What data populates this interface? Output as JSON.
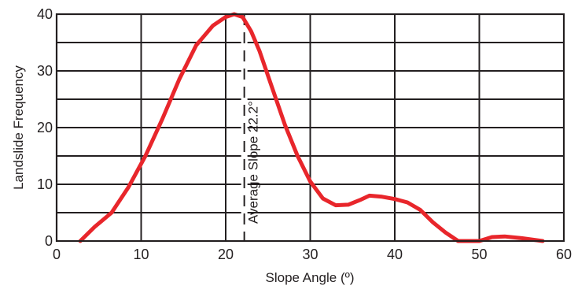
{
  "chart_data": {
    "type": "line",
    "title": "",
    "xlabel": "Slope Angle (º)",
    "ylabel": "Landslide Frequency",
    "xlim": [
      0,
      60
    ],
    "ylim": [
      0,
      40
    ],
    "x_ticks": [
      "0",
      "10",
      "20",
      "30",
      "40",
      "50",
      "60"
    ],
    "y_ticks": [
      "0",
      "10",
      "20",
      "30",
      "40"
    ],
    "grid": true,
    "series": [
      {
        "color": "#e8262b",
        "x": [
          2.8,
          4.5,
          6.5,
          8.5,
          10.5,
          12.5,
          14.5,
          16.5,
          18.5,
          20,
          21,
          22,
          23,
          24,
          25.5,
          27,
          28.5,
          30,
          31.5,
          33,
          34.5,
          36,
          37,
          38.5,
          40,
          41.5,
          43,
          44.5,
          46,
          47.5,
          50,
          51.5,
          53,
          55,
          57.5
        ],
        "y": [
          0,
          2.5,
          5,
          9.5,
          15,
          21.5,
          28.5,
          34.5,
          38,
          39.5,
          40,
          39.5,
          37,
          33.5,
          27,
          20.5,
          15,
          10.5,
          7.5,
          6.3,
          6.4,
          7.3,
          8,
          7.8,
          7.4,
          6.8,
          5.5,
          3.3,
          1.5,
          0,
          0,
          0.7,
          0.8,
          0.5,
          0
        ]
      }
    ],
    "reference_line": {
      "x": 22.2,
      "label": "Average Slope  22.2°",
      "style": "dashed",
      "color": "#231f20"
    }
  }
}
